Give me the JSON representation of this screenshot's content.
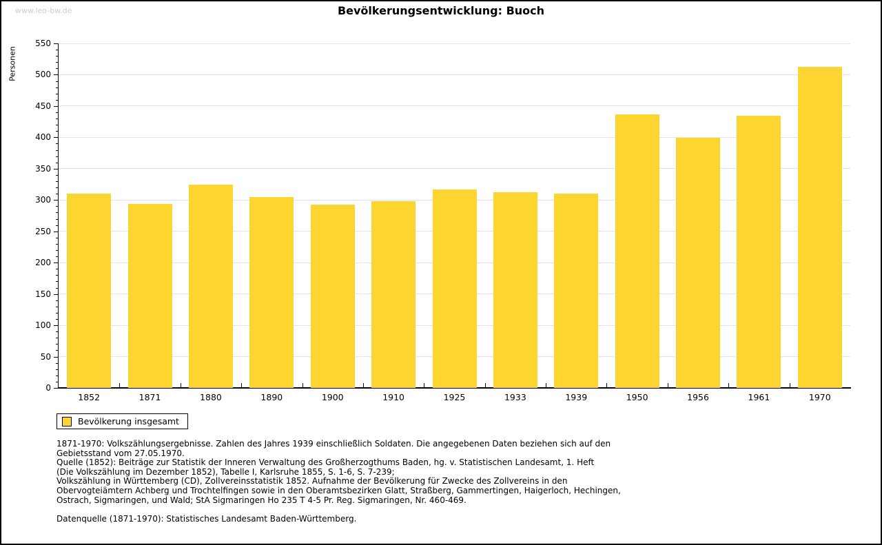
{
  "page": {
    "watermark": "www.leo-bw.de",
    "title": "Bevölkerungsentwicklung: Buoch"
  },
  "chart_data": {
    "type": "bar",
    "title": "Bevölkerungsentwicklung: Buoch",
    "xlabel": "",
    "ylabel": "Personen",
    "categories": [
      "1852",
      "1871",
      "1880",
      "1890",
      "1900",
      "1910",
      "1925",
      "1933",
      "1939",
      "1950",
      "1956",
      "1961",
      "1970"
    ],
    "values": [
      310,
      294,
      325,
      305,
      293,
      298,
      317,
      312,
      310,
      437,
      399,
      434,
      513
    ],
    "series_name": "Bevölkerung insgesamt",
    "ylim": [
      0,
      550
    ],
    "ytick_step": 50,
    "y_minor_step": 10,
    "grid": true,
    "bar_color": "#fdd531",
    "grid_color": "#e2e2e2",
    "legend_position": "bottom-left"
  },
  "legend": {
    "label": "Bevölkerung insgesamt"
  },
  "footnotes": {
    "lines": [
      "1871-1970: Volkszählungsergebnisse. Zahlen des Jahres 1939 einschließlich Soldaten. Die angegebenen Daten beziehen sich auf den",
      "Gebietsstand vom 27.05.1970.",
      "Quelle (1852): Beiträge zur Statistik der Inneren Verwaltung des Großherzogthums Baden, hg. v. Statistischen Landesamt, 1. Heft",
      "(Die Volkszählung im Dezember 1852), Tabelle I, Karlsruhe 1855, S. 1-6, S. 7-239;",
      "Volkszählung in Württemberg (CD), Zollvereinsstatistik 1852. Aufnahme der Bevölkerung für Zwecke des Zollvereins in den",
      "Obervogteiämtern Achberg und Trochtelfingen sowie in den Oberamtsbezirken Glatt, Straßberg, Gammertingen, Haigerloch, Hechingen,",
      "Ostrach, Sigmaringen, und Wald; StA Sigmaringen Ho 235 T 4-5 Pr. Reg. Sigmaringen, Nr. 460-469."
    ],
    "datasource": "Datenquelle (1871-1970): Statistisches Landesamt Baden-Württemberg."
  }
}
